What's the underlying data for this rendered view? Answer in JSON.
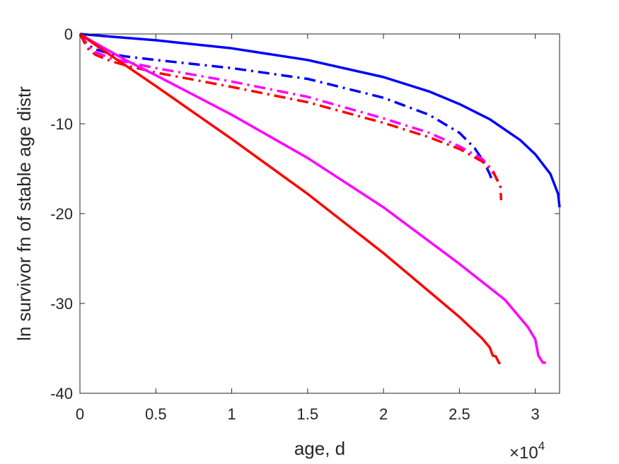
{
  "chart_data": {
    "type": "line",
    "title": "",
    "xlabel": "age, d",
    "ylabel": "ln survivor fn of stable age distr",
    "x_exponent_label": {
      "base": "×10",
      "exp": "4"
    },
    "xlim": [
      0,
      31600
    ],
    "ylim": [
      -40,
      0
    ],
    "xticks": [
      0,
      5000,
      10000,
      15000,
      20000,
      25000,
      30000
    ],
    "xtick_labels": [
      "0",
      "0.5",
      "1",
      "1.5",
      "2",
      "2.5",
      "3"
    ],
    "yticks": [
      0,
      -10,
      -20,
      -30,
      -40
    ],
    "ytick_labels": [
      "0",
      "-10",
      "-20",
      "-30",
      "-40"
    ],
    "grid": false,
    "series": [
      {
        "color": "#0000ff",
        "style": "solid",
        "x": [
          0,
          2000,
          5000,
          10000,
          15000,
          20000,
          23000,
          25000,
          27000,
          29000,
          30000,
          31000,
          31500,
          31600
        ],
        "y": [
          0,
          -0.3,
          -0.7,
          -1.6,
          -2.9,
          -4.8,
          -6.4,
          -7.8,
          -9.5,
          -11.8,
          -13.4,
          -15.6,
          -17.8,
          -19.3
        ]
      },
      {
        "color": "#0000ff",
        "style": "dashdot",
        "x": [
          0,
          500,
          1000,
          2000,
          3000,
          5000,
          10000,
          15000,
          20000,
          23000,
          25000,
          26000,
          26600,
          27000,
          27200
        ],
        "y": [
          0,
          -1.2,
          -1.7,
          -2.2,
          -2.5,
          -2.9,
          -3.8,
          -5.0,
          -7.1,
          -9.0,
          -11.0,
          -12.7,
          -14.2,
          -15.6,
          -16.5
        ]
      },
      {
        "color": "#ff00ff",
        "style": "dashdot",
        "x": [
          0,
          500,
          1000,
          2000,
          3000,
          5000,
          10000,
          15000,
          20000,
          23000,
          25000,
          26500,
          27200,
          27700
        ],
        "y": [
          0,
          -1.3,
          -2.0,
          -2.7,
          -3.1,
          -3.8,
          -5.3,
          -7.0,
          -9.4,
          -11.0,
          -12.5,
          -13.9,
          -15.2,
          -17.0
        ]
      },
      {
        "color": "#ff0000",
        "style": "dashdot",
        "x": [
          0,
          500,
          1000,
          2000,
          3000,
          5000,
          10000,
          15000,
          20000,
          23000,
          25000,
          26500,
          27300,
          27700,
          27750
        ],
        "y": [
          0,
          -1.6,
          -2.3,
          -3.0,
          -3.5,
          -4.3,
          -5.9,
          -7.6,
          -9.9,
          -11.5,
          -12.8,
          -14.2,
          -15.6,
          -17.0,
          -18.5
        ]
      },
      {
        "color": "#ff00ff",
        "style": "solid",
        "x": [
          0,
          1000,
          3000,
          5000,
          10000,
          15000,
          20000,
          25000,
          28000,
          29500,
          30000,
          30200,
          30500,
          30700
        ],
        "y": [
          0,
          -1.0,
          -2.9,
          -4.6,
          -9.0,
          -13.8,
          -19.3,
          -25.6,
          -29.6,
          -32.6,
          -34.0,
          -35.8,
          -36.6,
          -36.6
        ]
      },
      {
        "color": "#ff0000",
        "style": "solid",
        "x": [
          0,
          1000,
          3000,
          5000,
          10000,
          15000,
          20000,
          25000,
          26500,
          27000,
          27200,
          27400,
          27600,
          27700
        ],
        "y": [
          0,
          -1.2,
          -3.5,
          -5.8,
          -11.7,
          -17.8,
          -24.4,
          -31.5,
          -33.9,
          -34.9,
          -35.8,
          -35.9,
          -36.6,
          -36.7
        ]
      }
    ]
  }
}
